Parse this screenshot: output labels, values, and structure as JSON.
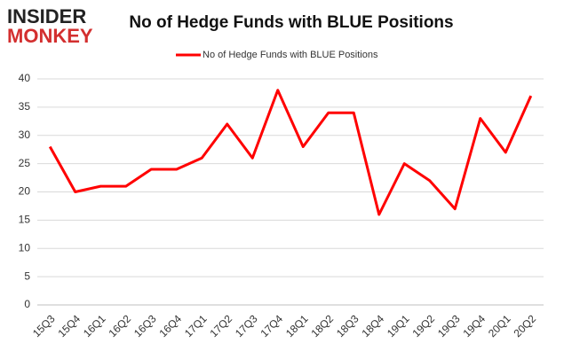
{
  "logo": {
    "line1": "INSIDER",
    "line2": "MONKEY"
  },
  "chart_data": {
    "type": "line",
    "title": "No of Hedge Funds with BLUE Positions",
    "categories": [
      "15Q3",
      "15Q4",
      "16Q1",
      "16Q2",
      "16Q3",
      "16Q4",
      "17Q1",
      "17Q2",
      "17Q3",
      "17Q4",
      "18Q1",
      "18Q2",
      "18Q3",
      "18Q4",
      "19Q1",
      "19Q2",
      "19Q3",
      "19Q4",
      "20Q1",
      "20Q2"
    ],
    "series": [
      {
        "name": "No of Hedge Funds with BLUE Positions",
        "color": "#ff0000",
        "values": [
          28,
          20,
          21,
          21,
          24,
          24,
          26,
          32,
          26,
          38,
          28,
          34,
          34,
          16,
          25,
          22,
          17,
          33,
          27,
          37
        ]
      }
    ],
    "ylim": [
      0,
      40
    ],
    "yticks": [
      0,
      5,
      10,
      15,
      20,
      25,
      30,
      35,
      40
    ],
    "grid": true,
    "legend": "top"
  }
}
